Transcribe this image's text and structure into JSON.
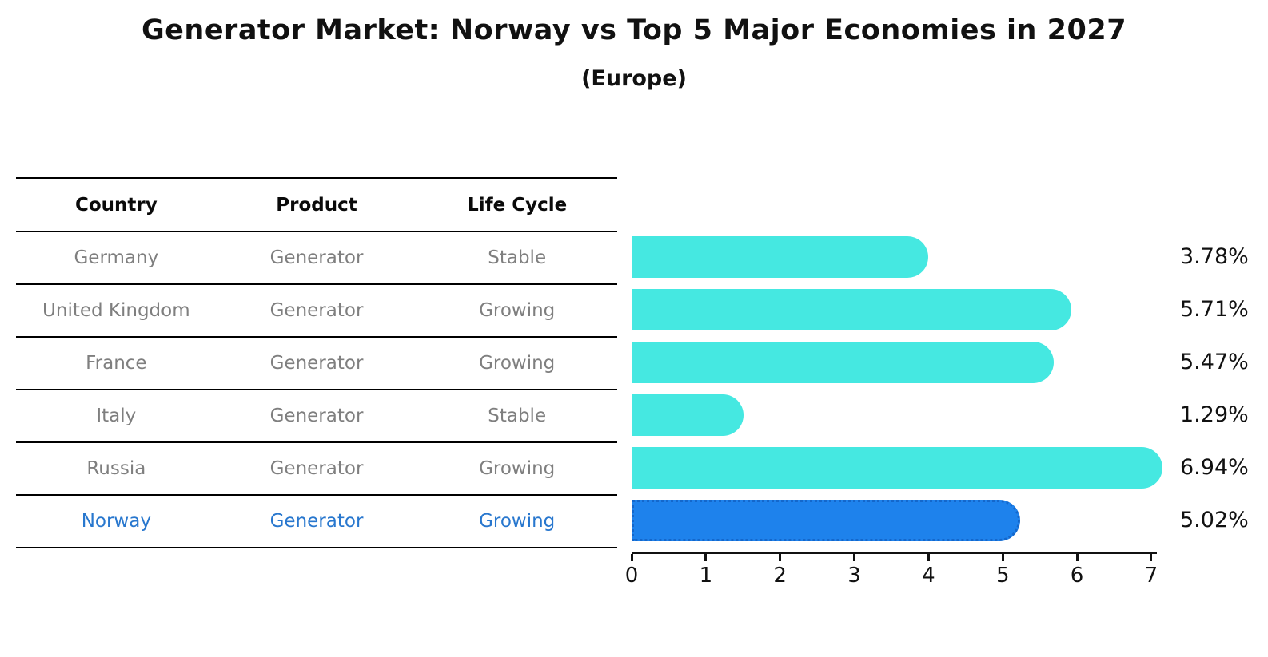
{
  "title": "Generator Market: Norway vs Top 5 Major Economies in 2027",
  "subtitle": "(Europe)",
  "table": {
    "headers": [
      "Country",
      "Product",
      "Life Cycle"
    ],
    "rows": [
      {
        "country": "Germany",
        "product": "Generator",
        "life_cycle": "Stable",
        "highlight": false
      },
      {
        "country": "United Kingdom",
        "product": "Generator",
        "life_cycle": "Growing",
        "highlight": false
      },
      {
        "country": "France",
        "product": "Generator",
        "life_cycle": "Growing",
        "highlight": false
      },
      {
        "country": "Italy",
        "product": "Generator",
        "life_cycle": "Stable",
        "highlight": false
      },
      {
        "country": "Russia",
        "product": "Generator",
        "life_cycle": "Growing",
        "highlight": false
      },
      {
        "country": "Norway",
        "product": "Generator",
        "life_cycle": "Growing",
        "highlight": true
      }
    ]
  },
  "chart_data": {
    "type": "bar",
    "orientation": "horizontal",
    "title": "Generator Market: Norway vs Top 5 Major Economies in 2027",
    "subtitle": "(Europe)",
    "categories": [
      "Germany",
      "United Kingdom",
      "France",
      "Italy",
      "Russia",
      "Norway"
    ],
    "values": [
      3.78,
      5.71,
      5.47,
      1.29,
      6.94,
      5.02
    ],
    "value_labels": [
      "3.78%",
      "5.71%",
      "5.47%",
      "1.29%",
      "6.94%",
      "5.02%"
    ],
    "x_ticks": [
      "0",
      "1",
      "2",
      "3",
      "4",
      "5",
      "6",
      "7"
    ],
    "xlim": [
      0,
      7
    ],
    "grid": false,
    "legend": "none",
    "highlight_index": 5,
    "bar_color": "#45e8e1",
    "highlight_color": "#1e82ec",
    "highlight_border_color": "#1467cb",
    "highlight_text_color": "#2877ce"
  }
}
